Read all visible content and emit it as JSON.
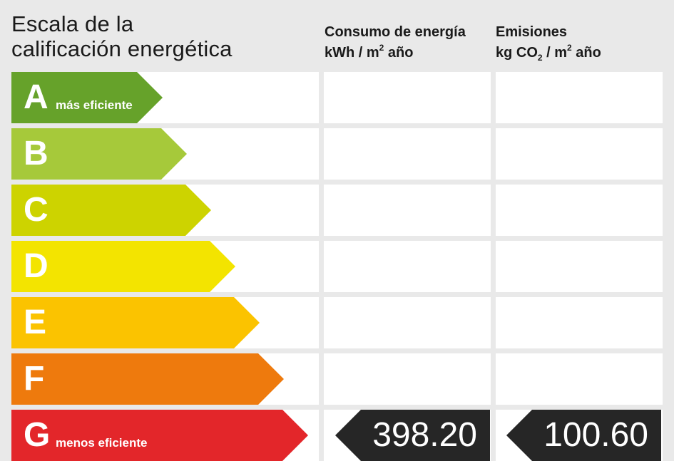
{
  "title": {
    "line1": "Escala de la",
    "line2": "calificación energética"
  },
  "columns": {
    "energy": {
      "line1": "Consumo de energía",
      "unit_pre": "kWh / m",
      "unit_sup": "2",
      "unit_post": " año"
    },
    "emissions": {
      "line1": "Emisiones",
      "unit_pre": "kg CO",
      "unit_sub": "2",
      "unit_mid": " / m",
      "unit_sup": "2",
      "unit_post": " año"
    }
  },
  "ratings": [
    {
      "letter": "A",
      "label": "más eficiente",
      "color": "#66a22a"
    },
    {
      "letter": "B",
      "label": "",
      "color": "#a6c93a"
    },
    {
      "letter": "C",
      "label": "",
      "color": "#cdd300"
    },
    {
      "letter": "D",
      "label": "",
      "color": "#f3e400"
    },
    {
      "letter": "E",
      "label": "",
      "color": "#fbc300"
    },
    {
      "letter": "F",
      "label": "",
      "color": "#ee7a0d"
    },
    {
      "letter": "G",
      "label": "menos eficiente",
      "color": "#e3262a"
    }
  ],
  "result": {
    "rating": "G",
    "energy_value": "398.20",
    "emissions_value": "100.60",
    "color": "#262626"
  }
}
